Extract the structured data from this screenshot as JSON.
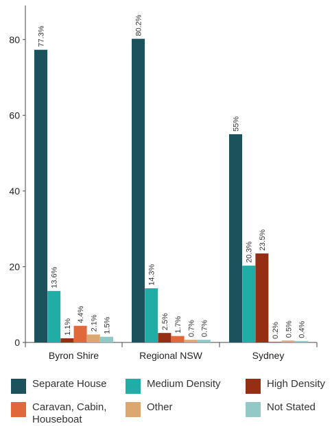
{
  "chart_data": {
    "type": "bar",
    "categories": [
      "Byron Shire",
      "Regional NSW",
      "Sydney"
    ],
    "series": [
      {
        "name": "Separate House",
        "color": "#1b525c",
        "values": [
          77.3,
          80.2,
          55
        ]
      },
      {
        "name": "Medium Density",
        "color": "#1fada6",
        "values": [
          13.6,
          14.3,
          20.3
        ]
      },
      {
        "name": "High Density",
        "color": "#962e14",
        "values": [
          1.1,
          2.5,
          23.5
        ]
      },
      {
        "name": "Caravan, Cabin,\nHouseboat",
        "color": "#e0683a",
        "values": [
          4.4,
          1.7,
          0.2
        ]
      },
      {
        "name": "Other",
        "color": "#dca771",
        "values": [
          2.1,
          0.7,
          0.5
        ]
      },
      {
        "name": "Not Stated",
        "color": "#92c9c6",
        "values": [
          1.5,
          0.7,
          0.4
        ]
      }
    ],
    "data_labels": [
      [
        "77.3%",
        "13.6%",
        "1.1%",
        "4.4%",
        "2.1%",
        "1.5%"
      ],
      [
        "80.2%",
        "14.3%",
        "2.5%",
        "1.7%",
        "0.7%",
        "0.7%"
      ],
      [
        "55%",
        "20.3%",
        "23.5%",
        "0.2%",
        "0.5%",
        "0.4%"
      ]
    ],
    "yticks": [
      "0",
      "20",
      "40",
      "60",
      "80"
    ],
    "ylim": [
      0,
      89
    ],
    "grid": false,
    "legend": "bottom"
  }
}
